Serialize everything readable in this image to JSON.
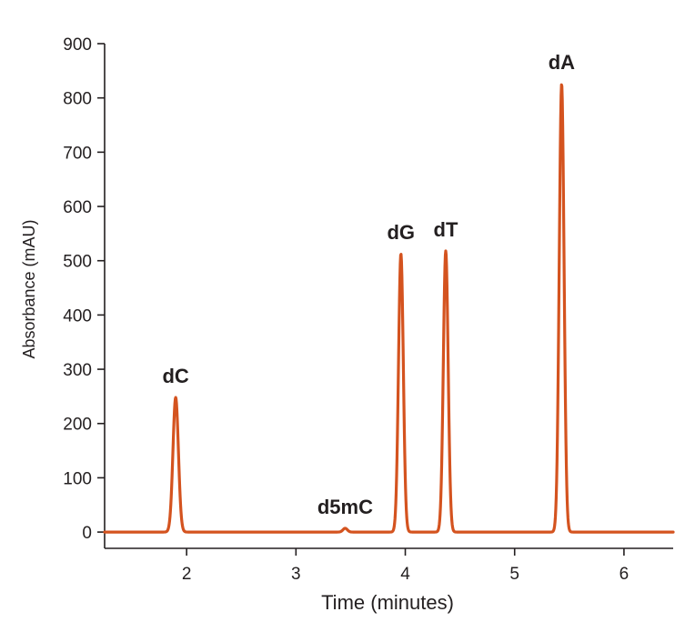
{
  "chart_data": {
    "type": "line",
    "title": "",
    "xlabel": "Time (minutes)",
    "ylabel": "Absorbance (mAU)",
    "xlim": [
      1.25,
      6.45
    ],
    "ylim": [
      -30,
      900
    ],
    "xticks": [
      2,
      3,
      4,
      5,
      6
    ],
    "yticks": [
      0,
      100,
      200,
      300,
      400,
      500,
      600,
      700,
      800,
      900
    ],
    "grid": false,
    "legend": "none",
    "series": [
      {
        "color": "#d4531f",
        "baseline": 0,
        "peaks": [
          {
            "label": "dC",
            "x": 1.9,
            "y": 248,
            "width": 0.025
          },
          {
            "label": "d5mC",
            "x": 3.45,
            "y": 7,
            "width": 0.02
          },
          {
            "label": "dG",
            "x": 3.96,
            "y": 513,
            "width": 0.022
          },
          {
            "label": "dT",
            "x": 4.37,
            "y": 518,
            "width": 0.022
          },
          {
            "label": "dA",
            "x": 5.43,
            "y": 826,
            "width": 0.022
          }
        ]
      }
    ]
  }
}
